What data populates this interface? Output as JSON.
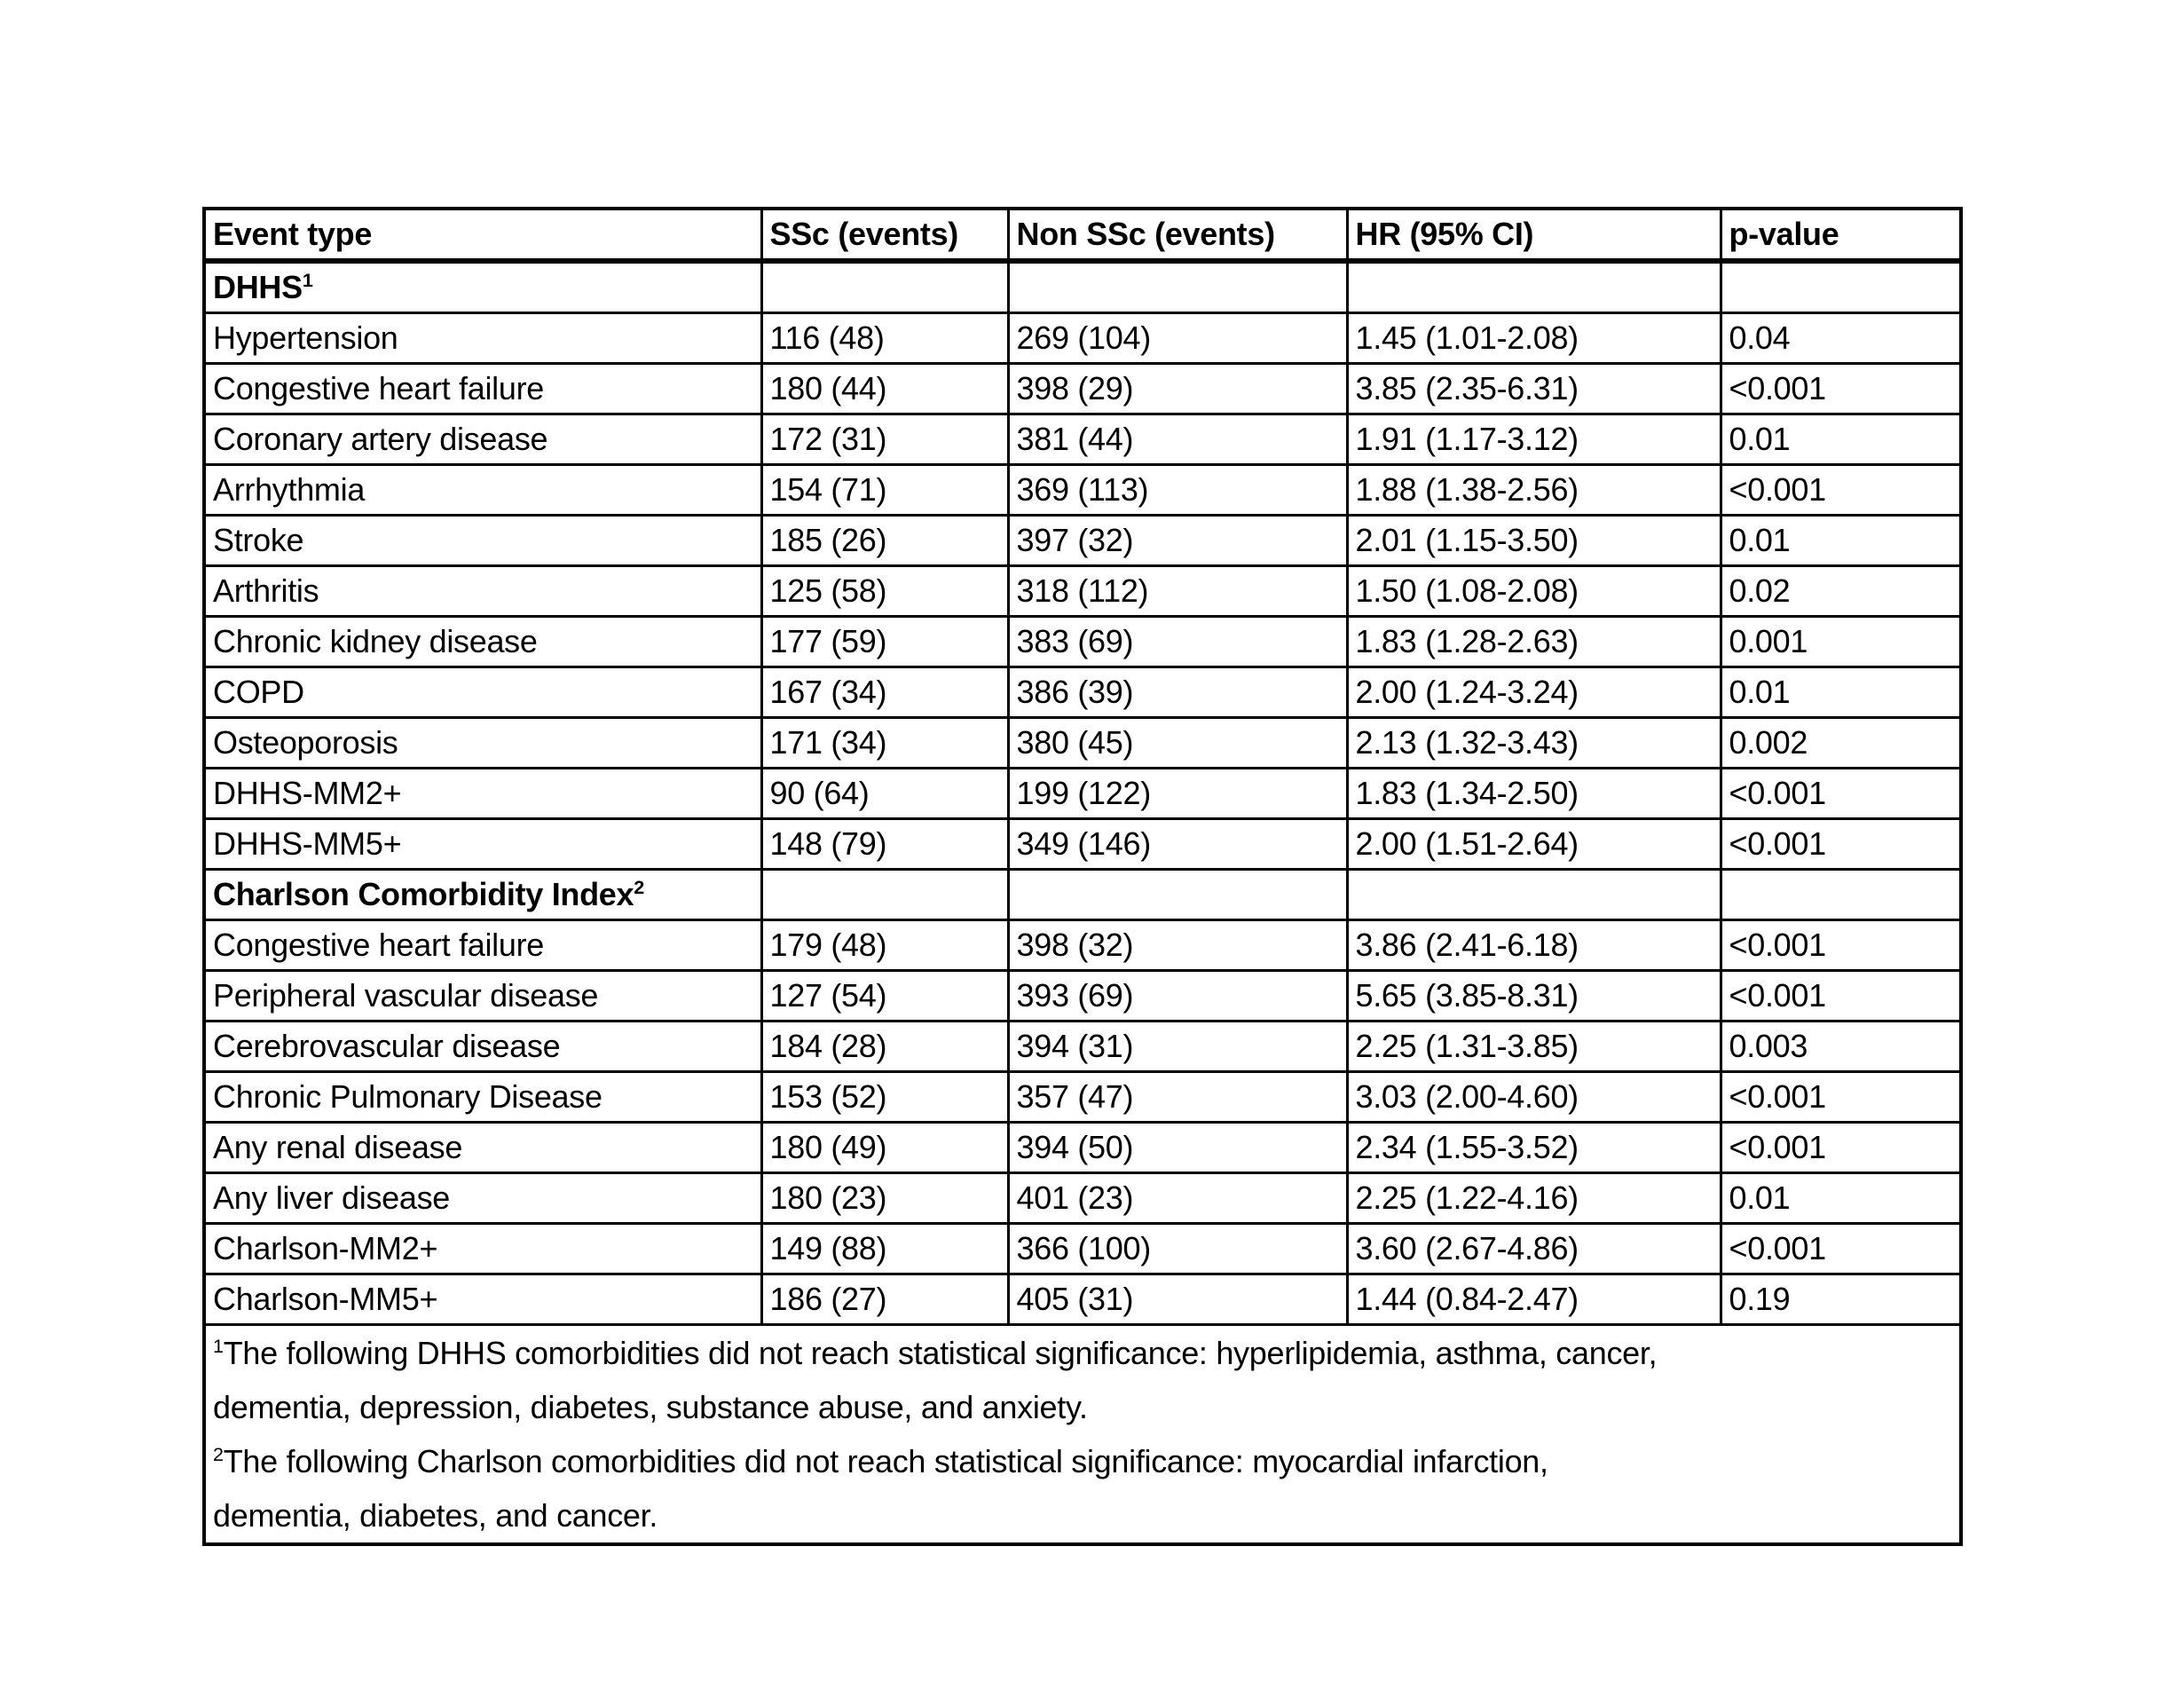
{
  "page": {
    "background": "#ffffff",
    "text_color": "#000000",
    "border_color": "#000000"
  },
  "table": {
    "columns": [
      "Event type",
      "SSc (events)",
      "Non SSc (events)",
      "HR (95% CI)",
      "p-value"
    ],
    "sections": [
      {
        "title": "DHHS",
        "title_superscript": "1",
        "rows": [
          [
            "Hypertension",
            "116 (48)",
            "269 (104)",
            "1.45 (1.01-2.08)",
            "0.04"
          ],
          [
            "Congestive heart failure",
            "180 (44)",
            "398 (29)",
            "3.85 (2.35-6.31)",
            "<0.001"
          ],
          [
            "Coronary artery disease",
            "172 (31)",
            "381 (44)",
            "1.91 (1.17-3.12)",
            "0.01"
          ],
          [
            "Arrhythmia",
            "154 (71)",
            "369 (113)",
            "1.88 (1.38-2.56)",
            "<0.001"
          ],
          [
            "Stroke",
            "185 (26)",
            "397 (32)",
            "2.01 (1.15-3.50)",
            "0.01"
          ],
          [
            "Arthritis",
            "125 (58)",
            "318 (112)",
            "1.50 (1.08-2.08)",
            "0.02"
          ],
          [
            "Chronic kidney disease",
            "177 (59)",
            "383 (69)",
            "1.83 (1.28-2.63)",
            "0.001"
          ],
          [
            "COPD",
            "167 (34)",
            "386 (39)",
            "2.00 (1.24-3.24)",
            "0.01"
          ],
          [
            "Osteoporosis",
            "171 (34)",
            "380 (45)",
            "2.13 (1.32-3.43)",
            "0.002"
          ],
          [
            "DHHS-MM2+",
            "90 (64)",
            "199 (122)",
            "1.83 (1.34-2.50)",
            "<0.001"
          ],
          [
            "DHHS-MM5+",
            "148 (79)",
            "349 (146)",
            "2.00 (1.51-2.64)",
            "<0.001"
          ]
        ]
      },
      {
        "title": "Charlson Comorbidity Index",
        "title_superscript": "2",
        "rows": [
          [
            "Congestive heart failure",
            "179 (48)",
            "398 (32)",
            "3.86 (2.41-6.18)",
            "<0.001"
          ],
          [
            "Peripheral vascular disease",
            "127 (54)",
            "393 (69)",
            "5.65 (3.85-8.31)",
            "<0.001"
          ],
          [
            "Cerebrovascular disease",
            "184 (28)",
            "394 (31)",
            "2.25 (1.31-3.85)",
            "0.003"
          ],
          [
            "Chronic Pulmonary Disease",
            "153 (52)",
            "357 (47)",
            "3.03 (2.00-4.60)",
            "<0.001"
          ],
          [
            "Any renal disease",
            "180 (49)",
            "394 (50)",
            "2.34 (1.55-3.52)",
            "<0.001"
          ],
          [
            "Any liver disease",
            "180 (23)",
            "401 (23)",
            "2.25 (1.22-4.16)",
            "0.01"
          ],
          [
            "Charlson-MM2+",
            "149 (88)",
            "366 (100)",
            "3.60 (2.67-4.86)",
            "<0.001"
          ],
          [
            "Charlson-MM5+",
            "186 (27)",
            "405 (31)",
            "1.44 (0.84-2.47)",
            "0.19"
          ]
        ]
      }
    ],
    "footnotes": [
      {
        "marker": "1",
        "lines": [
          "The following DHHS comorbidities did not reach statistical significance: hyperlipidemia, asthma, cancer,",
          "dementia, depression, diabetes, substance abuse, and anxiety."
        ]
      },
      {
        "marker": "2",
        "lines": [
          "The following Charlson comorbidities did not reach statistical significance: myocardial infarction,",
          "dementia, diabetes, and cancer."
        ]
      }
    ]
  }
}
